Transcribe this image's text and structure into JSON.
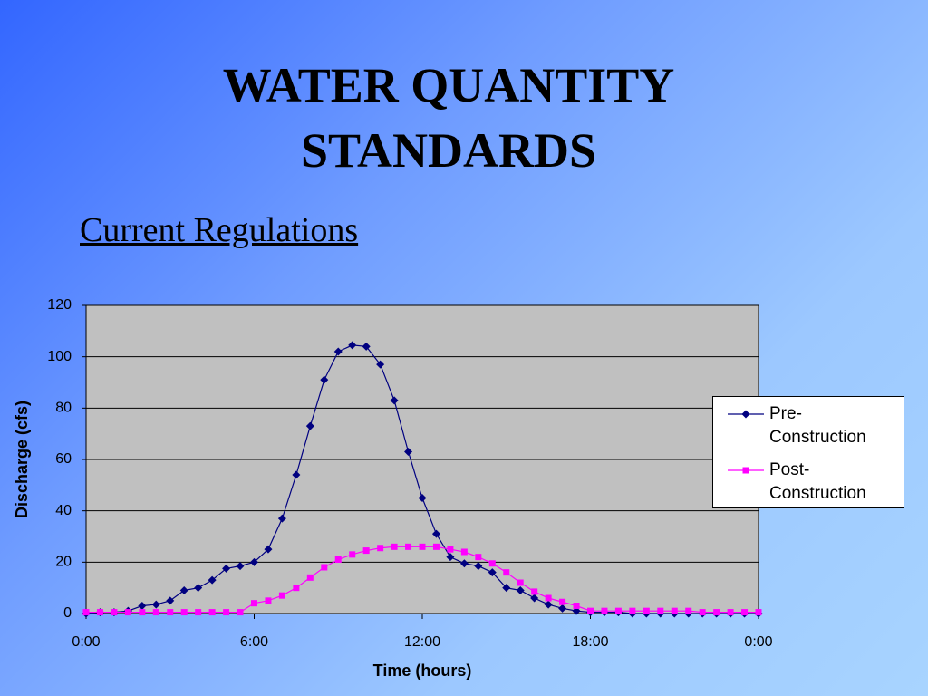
{
  "title": "WATER QUANTITY STANDARDS",
  "subtitle": "Current Regulations",
  "chart_data": {
    "type": "line",
    "xlabel": "Time (hours)",
    "ylabel": "Discharge (cfs)",
    "x": [
      0,
      0.5,
      1,
      1.5,
      2,
      2.5,
      3,
      3.5,
      4,
      4.5,
      5,
      5.5,
      6,
      6.5,
      7,
      7.5,
      8,
      8.5,
      9,
      9.5,
      10,
      10.5,
      11,
      11.5,
      12,
      12.5,
      13,
      13.5,
      14,
      14.5,
      15,
      15.5,
      16,
      16.5,
      17,
      17.5,
      18,
      18.5,
      19,
      19.5,
      20,
      20.5,
      21,
      21.5,
      22,
      22.5,
      23,
      23.5,
      24
    ],
    "series": [
      {
        "name": "Pre-Construction",
        "color": "#000080",
        "marker": "diamond",
        "values": [
          0,
          0.5,
          0.5,
          1,
          3,
          3.5,
          5,
          9,
          10,
          13,
          17.5,
          18.5,
          20,
          25,
          37,
          54,
          73,
          91,
          102,
          104.5,
          104,
          97,
          83,
          63,
          45,
          31,
          22,
          19.5,
          18.5,
          16,
          10,
          9,
          6,
          3.5,
          2,
          1,
          0.5,
          0.5,
          0.5,
          0,
          0,
          0,
          0,
          0,
          0,
          0,
          0,
          0,
          0
        ]
      },
      {
        "name": "Post-Construction",
        "color": "#ff00ff",
        "marker": "square",
        "values": [
          0.5,
          0.5,
          0.5,
          0.5,
          0.5,
          0.5,
          0.5,
          0.5,
          0.5,
          0.5,
          0.5,
          0.5,
          4,
          5,
          7,
          10,
          14,
          18,
          21,
          23,
          24.5,
          25.5,
          26,
          26,
          26,
          26,
          25,
          24,
          22,
          19.5,
          16,
          12,
          8.5,
          6,
          4.5,
          3,
          1,
          1,
          1,
          1,
          1,
          1,
          1,
          1,
          0.5,
          0.5,
          0.5,
          0.5,
          0.5
        ]
      }
    ],
    "xlim": [
      0,
      24
    ],
    "xticks": [
      {
        "value": 0,
        "label": "0:00"
      },
      {
        "value": 6,
        "label": "6:00"
      },
      {
        "value": 12,
        "label": "12:00"
      },
      {
        "value": 18,
        "label": "18:00"
      },
      {
        "value": 24,
        "label": "0:00"
      }
    ],
    "ylim": [
      0,
      120
    ],
    "yticks": [
      0,
      20,
      40,
      60,
      80,
      100,
      120
    ],
    "grid": true,
    "plot_background": "#c0c0c0",
    "legend": "right"
  }
}
